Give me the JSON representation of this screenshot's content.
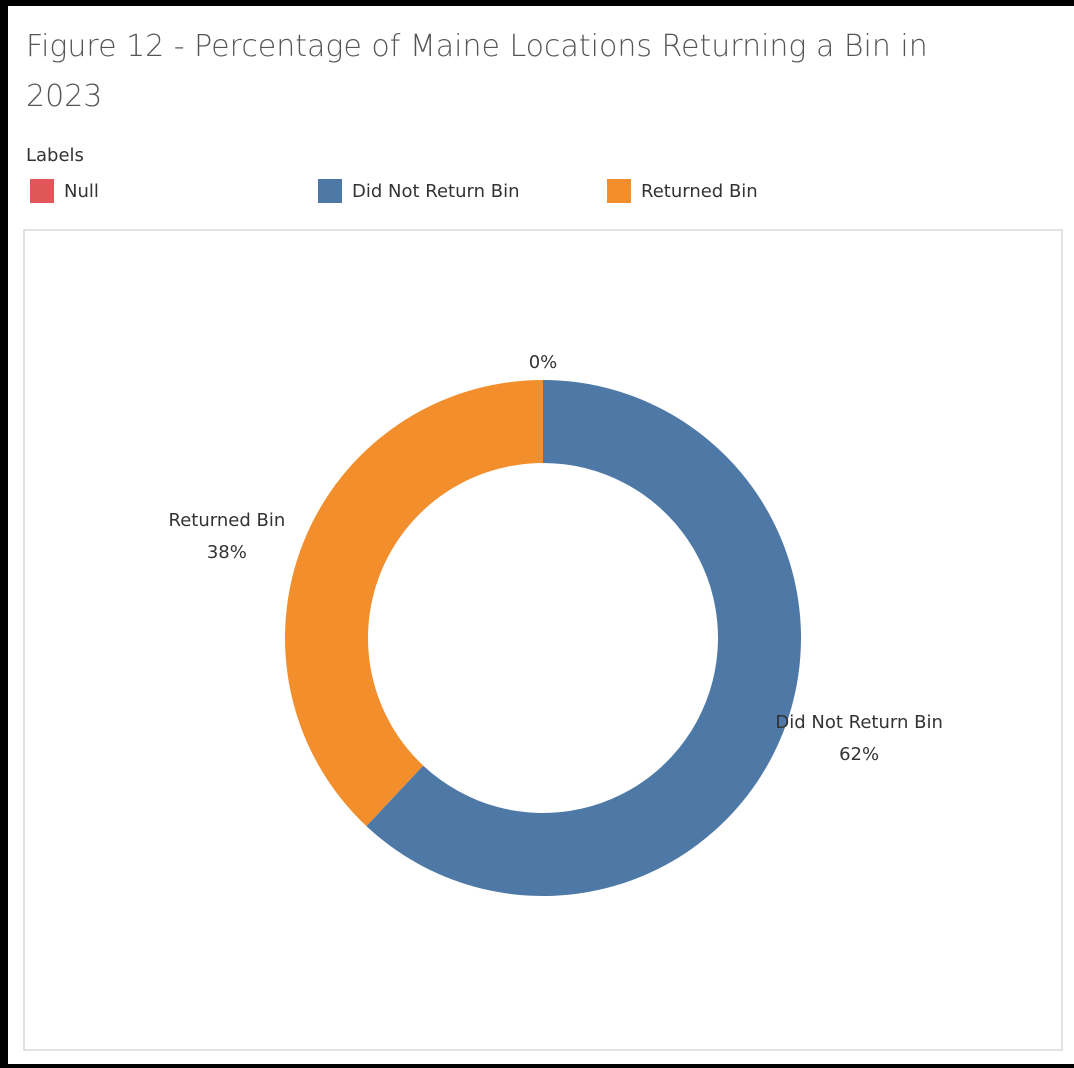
{
  "chart_data": {
    "type": "donut",
    "title": "Figure 12 - Percentage of Maine Locations Returning a Bin in 2023",
    "legend_title": "Labels",
    "categories": [
      "Null",
      "Did Not Return Bin",
      "Returned Bin"
    ],
    "values": [
      0,
      62,
      38
    ],
    "value_labels": [
      "0%",
      "62%",
      "38%"
    ],
    "colors": [
      "#e15759",
      "#4e79a7",
      "#f28e2b"
    ]
  }
}
